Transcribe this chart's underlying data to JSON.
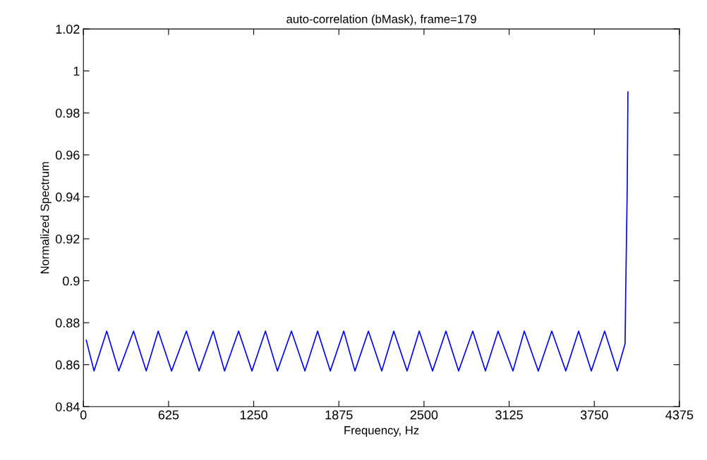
{
  "chart_data": {
    "type": "line",
    "title": "auto-correlation (bMask), frame=179",
    "xlabel": "Frequency, Hz",
    "ylabel": "Normalized Spectrum",
    "x": [
      21,
      78,
      171,
      259,
      368,
      461,
      549,
      647,
      756,
      849,
      953,
      1036,
      1139,
      1237,
      1336,
      1424,
      1527,
      1626,
      1719,
      1812,
      1911,
      1993,
      2092,
      2190,
      2278,
      2376,
      2465,
      2563,
      2661,
      2754,
      2858,
      2951,
      3044,
      3153,
      3236,
      3339,
      3438,
      3541,
      3635,
      3728,
      3826,
      3919,
      3976,
      3981,
      3992,
      3997
    ],
    "series": [
      {
        "color": "#0000ff",
        "values": [
          0.8716,
          0.857,
          0.876,
          0.857,
          0.876,
          0.857,
          0.876,
          0.857,
          0.876,
          0.857,
          0.876,
          0.857,
          0.876,
          0.857,
          0.876,
          0.857,
          0.876,
          0.857,
          0.876,
          0.857,
          0.876,
          0.857,
          0.876,
          0.857,
          0.876,
          0.857,
          0.876,
          0.857,
          0.876,
          0.857,
          0.876,
          0.857,
          0.876,
          0.857,
          0.876,
          0.857,
          0.876,
          0.857,
          0.876,
          0.857,
          0.876,
          0.857,
          0.87,
          0.896,
          0.945,
          0.99
        ]
      }
    ],
    "xlim": [
      0,
      4375
    ],
    "xticks": [
      0,
      625,
      1250,
      1875,
      2500,
      3125,
      3750,
      4375
    ],
    "ylim": [
      0.84,
      1.02
    ],
    "yticks": [
      0.84,
      0.86,
      0.88,
      {
        "value": 0.9,
        "label": "0.9"
      },
      0.92,
      0.94,
      0.96,
      0.98,
      {
        "value": 1.0,
        "label": "1"
      },
      1.02
    ],
    "grid": false,
    "line_style": "solid",
    "marker": "none"
  }
}
